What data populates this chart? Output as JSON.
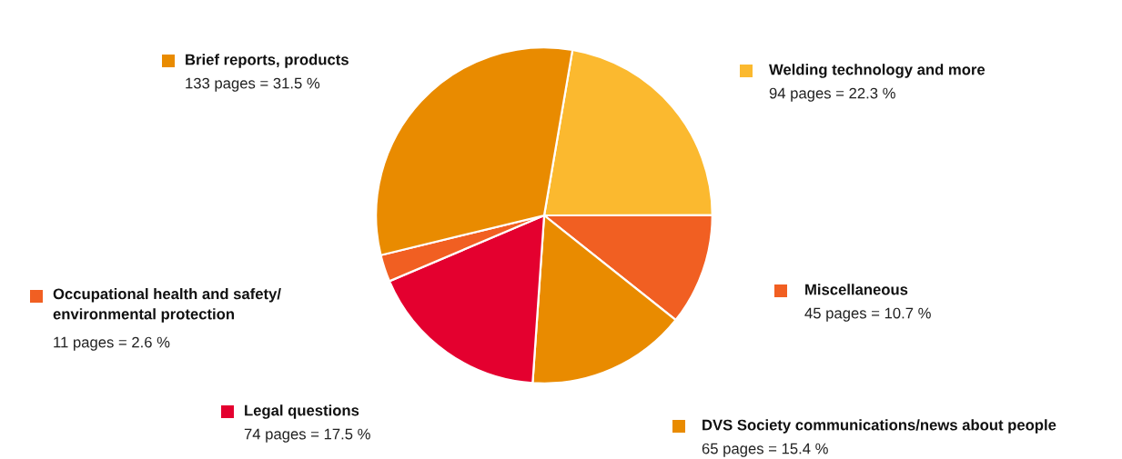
{
  "chart_data": {
    "type": "pie",
    "categories": [
      "Welding technology and more",
      "Miscellaneous",
      "DVS Society communications/news about people",
      "Legal questions",
      "Occupational health and safety/\nenvironmental protection",
      "Brief reports, products"
    ],
    "values": [
      22.3,
      10.7,
      15.4,
      17.5,
      2.6,
      31.5
    ],
    "colors": [
      "#fbb92f",
      "#f15f22",
      "#e98b00",
      "#e4002f",
      "#f15f22",
      "#e98b00"
    ],
    "value_labels": [
      "94 pages = 22.3 %",
      "45 pages = 10.7 %",
      "65 pages = 15.4 %",
      "74 pages = 17.5 %",
      "11 pages = 2.6 %",
      "133 pages = 31.5 %"
    ],
    "legend": "right"
  }
}
